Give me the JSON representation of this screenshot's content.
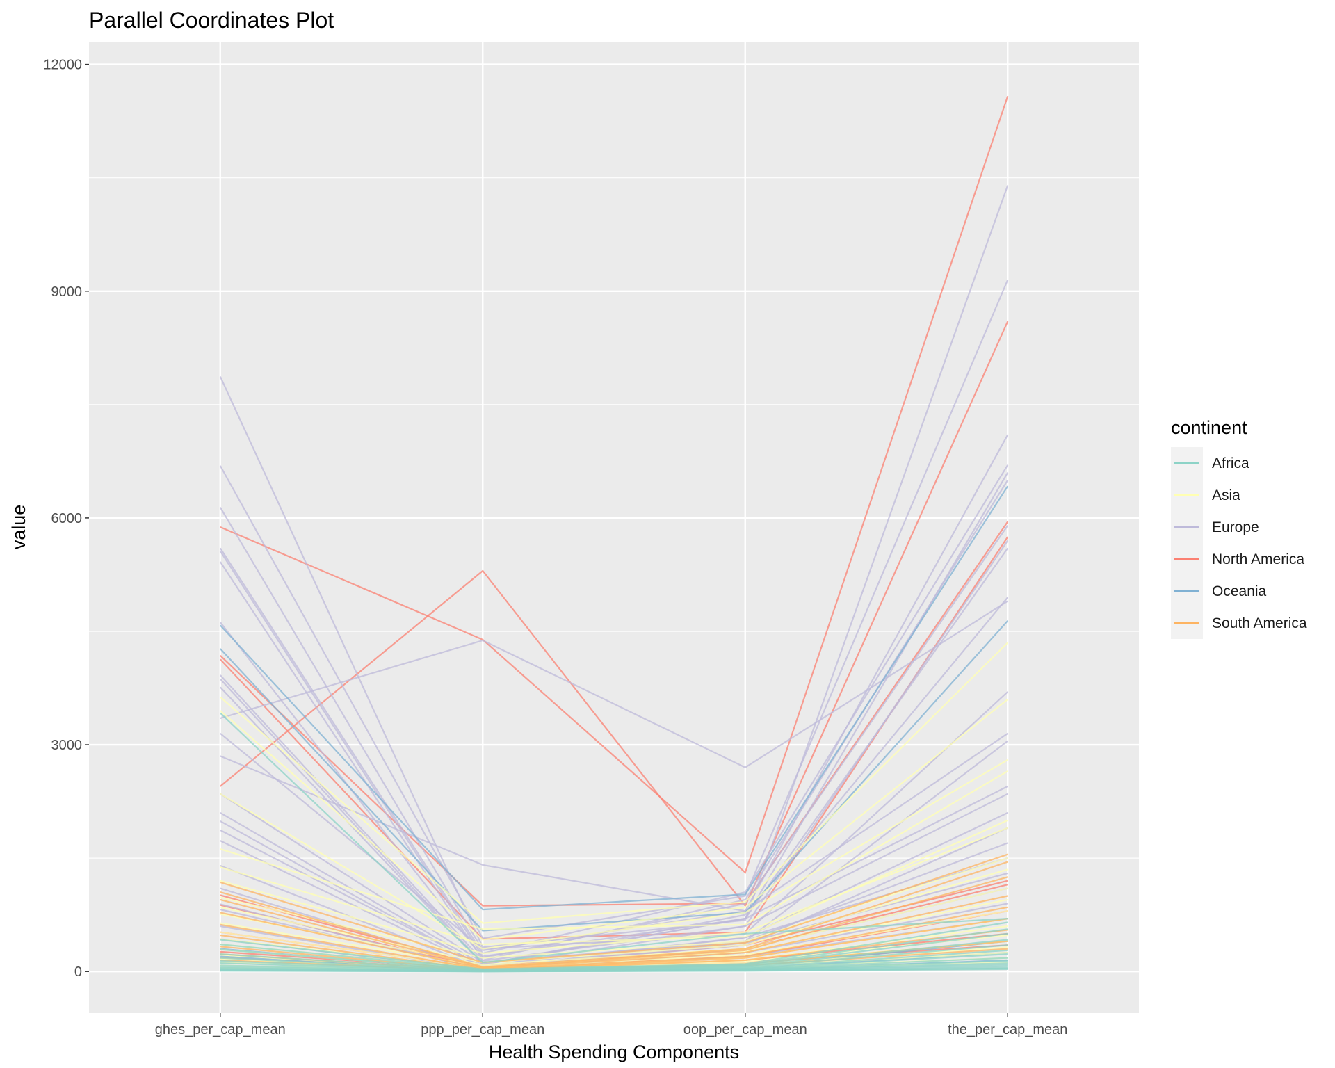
{
  "chart_data": {
    "type": "line",
    "subtype": "parallel-coordinates",
    "title": "Parallel Coordinates Plot",
    "xlabel": "Health Spending Components",
    "ylabel": "value",
    "categories": [
      "ghes_per_cap_mean",
      "ppp_per_cap_mean",
      "oop_per_cap_mean",
      "the_per_cap_mean"
    ],
    "ylim": [
      -550,
      12300
    ],
    "yticks": [
      0,
      3000,
      6000,
      9000,
      12000
    ],
    "grid": true,
    "legend": {
      "title": "continent",
      "position": "right",
      "entries": [
        {
          "name": "Africa",
          "color": "#8dd3c7"
        },
        {
          "name": "Asia",
          "color": "#ffffb3"
        },
        {
          "name": "Europe",
          "color": "#bebada"
        },
        {
          "name": "North America",
          "color": "#fb8072"
        },
        {
          "name": "Oceania",
          "color": "#80b1d3"
        },
        {
          "name": "South America",
          "color": "#fdb462"
        }
      ]
    },
    "series": [
      {
        "continent": "North America",
        "values": [
          5880,
          4390,
          1310,
          11580
        ]
      },
      {
        "continent": "North America",
        "values": [
          2450,
          5300,
          870,
          8600
        ]
      },
      {
        "continent": "North America",
        "values": [
          4180,
          870,
          900,
          5950
        ]
      },
      {
        "continent": "North America",
        "values": [
          4130,
          430,
          520,
          5750
        ]
      },
      {
        "continent": "North America",
        "values": [
          1010,
          60,
          350,
          1200
        ]
      },
      {
        "continent": "North America",
        "values": [
          880,
          40,
          300,
          1150
        ]
      },
      {
        "continent": "North America",
        "values": [
          520,
          50,
          200,
          800
        ]
      },
      {
        "continent": "North America",
        "values": [
          260,
          30,
          150,
          500
        ]
      },
      {
        "continent": "North America",
        "values": [
          180,
          20,
          120,
          350
        ]
      },
      {
        "continent": "Europe",
        "values": [
          7870,
          320,
          680,
          10400
        ]
      },
      {
        "continent": "Europe",
        "values": [
          6690,
          440,
          1000,
          9150
        ]
      },
      {
        "continent": "Europe",
        "values": [
          6140,
          280,
          800,
          7100
        ]
      },
      {
        "continent": "Europe",
        "values": [
          5600,
          240,
          1050,
          6700
        ]
      },
      {
        "continent": "Europe",
        "values": [
          5560,
          200,
          700,
          6600
        ]
      },
      {
        "continent": "Europe",
        "values": [
          5420,
          150,
          950,
          6500
        ]
      },
      {
        "continent": "Europe",
        "values": [
          4620,
          180,
          900,
          5900
        ]
      },
      {
        "continent": "Europe",
        "values": [
          3920,
          140,
          600,
          5700
        ]
      },
      {
        "continent": "Europe",
        "values": [
          3870,
          100,
          700,
          5600
        ]
      },
      {
        "continent": "Europe",
        "values": [
          3760,
          90,
          750,
          4950
        ]
      },
      {
        "continent": "Europe",
        "values": [
          3350,
          4380,
          2700,
          4900
        ]
      },
      {
        "continent": "Europe",
        "values": [
          3150,
          300,
          500,
          3700
        ]
      },
      {
        "continent": "Europe",
        "values": [
          2850,
          1410,
          800,
          3150
        ]
      },
      {
        "continent": "Europe",
        "values": [
          2350,
          120,
          400,
          3050
        ]
      },
      {
        "continent": "Europe",
        "values": [
          2100,
          90,
          700,
          2450
        ]
      },
      {
        "continent": "Europe",
        "values": [
          1990,
          60,
          600,
          2350
        ]
      },
      {
        "continent": "Europe",
        "values": [
          1870,
          70,
          450,
          2100
        ]
      },
      {
        "continent": "Europe",
        "values": [
          1730,
          50,
          350,
          1900
        ]
      },
      {
        "continent": "Europe",
        "values": [
          1400,
          40,
          400,
          1700
        ]
      },
      {
        "continent": "Europe",
        "values": [
          1100,
          30,
          450,
          1500
        ]
      },
      {
        "continent": "Europe",
        "values": [
          890,
          20,
          380,
          1300
        ]
      },
      {
        "continent": "Europe",
        "values": [
          820,
          25,
          300,
          1100
        ]
      },
      {
        "continent": "Europe",
        "values": [
          600,
          15,
          250,
          900
        ]
      },
      {
        "continent": "Europe",
        "values": [
          430,
          10,
          200,
          700
        ]
      },
      {
        "continent": "Oceania",
        "values": [
          4580,
          820,
          1020,
          6420
        ]
      },
      {
        "continent": "Oceania",
        "values": [
          4270,
          540,
          780,
          4640
        ]
      },
      {
        "continent": "Oceania",
        "values": [
          300,
          10,
          60,
          400
        ]
      },
      {
        "continent": "Oceania",
        "values": [
          200,
          5,
          40,
          250
        ]
      },
      {
        "continent": "Oceania",
        "values": [
          120,
          5,
          20,
          150
        ]
      },
      {
        "continent": "Asia",
        "values": [
          3630,
          640,
          920,
          4350
        ]
      },
      {
        "continent": "Asia",
        "values": [
          3450,
          420,
          850,
          3600
        ]
      },
      {
        "continent": "Asia",
        "values": [
          2350,
          300,
          780,
          2800
        ]
      },
      {
        "continent": "Asia",
        "values": [
          1620,
          560,
          620,
          2650
        ]
      },
      {
        "continent": "Asia",
        "values": [
          1380,
          360,
          460,
          2000
        ]
      },
      {
        "continent": "Asia",
        "values": [
          1200,
          240,
          520,
          1900
        ]
      },
      {
        "continent": "Asia",
        "values": [
          980,
          180,
          400,
          1500
        ]
      },
      {
        "continent": "Asia",
        "values": [
          850,
          120,
          350,
          1350
        ]
      },
      {
        "continent": "Asia",
        "values": [
          760,
          90,
          300,
          1100
        ]
      },
      {
        "continent": "Asia",
        "values": [
          640,
          70,
          260,
          950
        ]
      },
      {
        "continent": "Asia",
        "values": [
          520,
          50,
          220,
          800
        ]
      },
      {
        "continent": "Asia",
        "values": [
          430,
          40,
          180,
          700
        ]
      },
      {
        "continent": "Asia",
        "values": [
          360,
          30,
          150,
          600
        ]
      },
      {
        "continent": "Asia",
        "values": [
          290,
          20,
          130,
          480
        ]
      },
      {
        "continent": "Asia",
        "values": [
          220,
          15,
          110,
          400
        ]
      },
      {
        "continent": "Asia",
        "values": [
          170,
          10,
          90,
          320
        ]
      },
      {
        "continent": "Asia",
        "values": [
          120,
          8,
          70,
          250
        ]
      },
      {
        "continent": "Asia",
        "values": [
          80,
          5,
          50,
          180
        ]
      },
      {
        "continent": "Asia",
        "values": [
          50,
          3,
          40,
          120
        ]
      },
      {
        "continent": "South America",
        "values": [
          1180,
          120,
          380,
          1550
        ]
      },
      {
        "continent": "South America",
        "values": [
          1050,
          60,
          300,
          1450
        ]
      },
      {
        "continent": "South America",
        "values": [
          950,
          50,
          280,
          1250
        ]
      },
      {
        "continent": "South America",
        "values": [
          780,
          40,
          250,
          1000
        ]
      },
      {
        "continent": "South America",
        "values": [
          620,
          30,
          200,
          850
        ]
      },
      {
        "continent": "South America",
        "values": [
          480,
          20,
          180,
          700
        ]
      },
      {
        "continent": "South America",
        "values": [
          330,
          15,
          150,
          550
        ]
      },
      {
        "continent": "South America",
        "values": [
          230,
          10,
          100,
          400
        ]
      },
      {
        "continent": "South America",
        "values": [
          150,
          8,
          80,
          300
        ]
      },
      {
        "continent": "Africa",
        "values": [
          3420,
          120,
          500,
          700
        ]
      },
      {
        "continent": "Africa",
        "values": [
          420,
          30,
          100,
          650
        ]
      },
      {
        "continent": "Africa",
        "values": [
          360,
          25,
          90,
          560
        ]
      },
      {
        "continent": "Africa",
        "values": [
          290,
          20,
          80,
          500
        ]
      },
      {
        "continent": "Africa",
        "values": [
          230,
          15,
          70,
          420
        ]
      },
      {
        "continent": "Africa",
        "values": [
          180,
          12,
          60,
          350
        ]
      },
      {
        "continent": "Africa",
        "values": [
          140,
          10,
          50,
          280
        ]
      },
      {
        "continent": "Africa",
        "values": [
          110,
          8,
          40,
          230
        ]
      },
      {
        "continent": "Africa",
        "values": [
          80,
          6,
          35,
          180
        ]
      },
      {
        "continent": "Africa",
        "values": [
          60,
          5,
          30,
          140
        ]
      },
      {
        "continent": "Africa",
        "values": [
          45,
          4,
          25,
          110
        ]
      },
      {
        "continent": "Africa",
        "values": [
          35,
          3,
          20,
          90
        ]
      },
      {
        "continent": "Africa",
        "values": [
          25,
          2,
          15,
          70
        ]
      },
      {
        "continent": "Africa",
        "values": [
          18,
          1,
          12,
          50
        ]
      },
      {
        "continent": "Africa",
        "values": [
          12,
          1,
          10,
          40
        ]
      },
      {
        "continent": "Africa",
        "values": [
          8,
          0,
          8,
          30
        ]
      }
    ]
  }
}
